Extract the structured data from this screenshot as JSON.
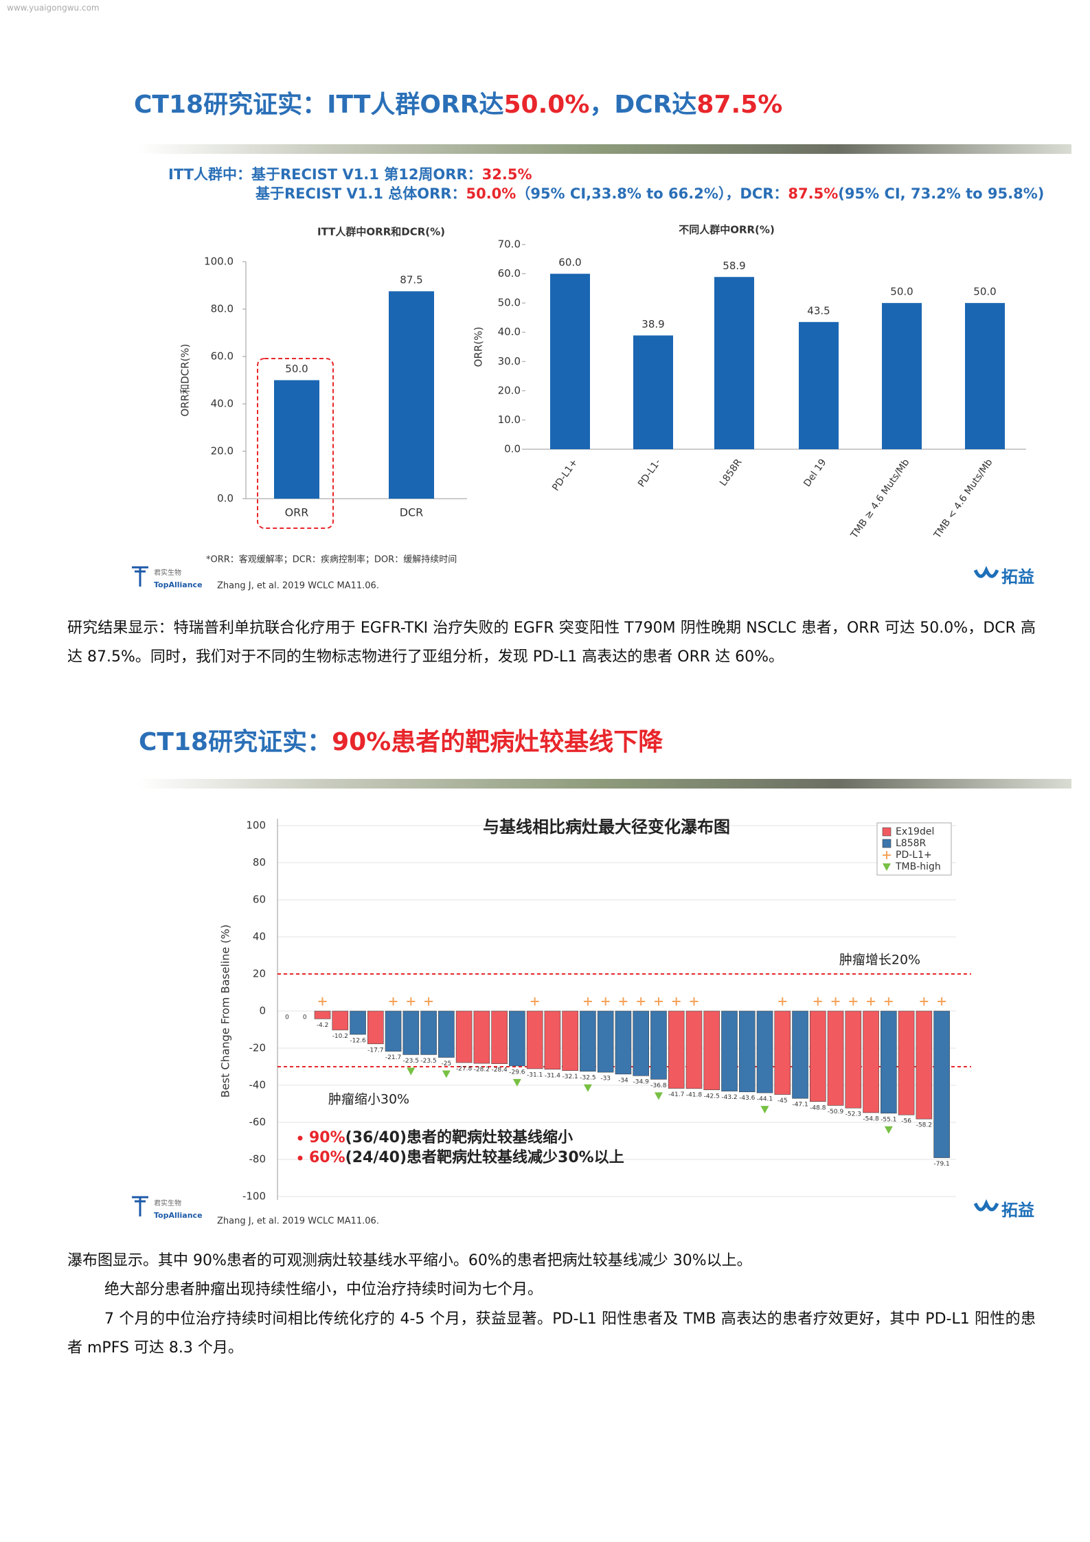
{
  "watermark": "www.yuaigongwu.com",
  "section1": {
    "title": [
      "CT18研究证实：ITT人群ORR达",
      "50.0%",
      "，DCR达",
      "87.5%"
    ],
    "subtitle": [
      [
        "ITT人群中：基于RECIST  V1.1 第12周ORR：",
        "32.5%"
      ],
      [
        "基于RECIST  V1.1 总体ORR：",
        "50.0%",
        "（95% CI,33.8% to 66.2%），DCR：",
        "87.5%",
        "(95% CI, 73.2% to 95.8%)"
      ]
    ],
    "footnote": "*ORR：客观缓解率；DCR：疾病控制率；DOR：缓解持续时间",
    "logo": [
      "君实生物",
      "TopAlliance"
    ],
    "reference": "Zhang J, et al. 2019 WCLC MA11.06.",
    "partner": "拓益"
  },
  "paragraph1": "研究结果显示：特瑞普利单抗联合化疗用于 EGFR-TKI 治疗失败的 EGFR 突变阳性 T790M 阴性晚期 NSCLC 患者，ORR 可达 50.0%，DCR 高达 87.5%。同时，我们对于不同的生物标志物进行了亚组分析，发现 PD-L1 高表达的患者 ORR 达 60%。",
  "section2": {
    "title": [
      "CT18研究证实：",
      "90%患者的靶病灶较基线下降"
    ],
    "logo": [
      "君实生物",
      "TopAlliance"
    ],
    "reference": "Zhang J, et al. 2019 WCLC MA11.06.",
    "partner": "拓益"
  },
  "paragraphs": [
    "瀑布图显示。其中 90%患者的可观测病灶较基线水平缩小。60%的患者把病灶较基线减少 30%以上。",
    "绝大部分患者肿瘤出现持续性缩小，中位治疗持续时间为七个月。",
    "7 个月的中位治疗持续时间相比传统化疗的 4-5 个月，获益显著。PD-L1 阳性患者及 TMB 高表达的患者疗效更好，其中 PD-L1 阳性的患者 mPFS 可达 8.3 个月。"
  ],
  "chart_data": [
    {
      "type": "bar",
      "title": "ITT人群中ORR和DCR(%)",
      "y_label": "ORR和DCR(%)",
      "categories": [
        "ORR",
        "DCR"
      ],
      "values": [
        50.0,
        87.5
      ],
      "value_labels": [
        "50.0",
        "87.5"
      ],
      "color": "#1a66b3",
      "ylim": [
        0,
        100
      ],
      "yticks": [
        {
          "value": 0,
          "label": "0.0"
        },
        {
          "value": 20,
          "label": "20.0"
        },
        {
          "value": 40,
          "label": "40.0"
        },
        {
          "value": 60,
          "label": "60.0"
        },
        {
          "value": 80,
          "label": "80.0"
        },
        {
          "value": 100,
          "label": "100.0"
        }
      ]
    },
    {
      "type": "bar",
      "title": "不同人群中ORR(%)",
      "y_label": "ORR(%)",
      "categories": [
        "PD-L1+",
        "PD-L1-",
        "L858R",
        "Del 19",
        "TMB ≥ 4.6 Muts/Mb",
        "TMB < 4.6 Muts/Mb"
      ],
      "values": [
        60.0,
        38.9,
        58.9,
        43.5,
        50.0,
        50.0
      ],
      "value_labels": [
        "60.0",
        "38.9",
        "58.9",
        "43.5",
        "50.0",
        "50.0"
      ],
      "color": "#1a66b3",
      "ylim": [
        0,
        70
      ],
      "yticks": [
        {
          "value": 0,
          "label": "0.0"
        },
        {
          "value": 10,
          "label": "10.0"
        },
        {
          "value": 20,
          "label": "20.0"
        },
        {
          "value": 30,
          "label": "30.0"
        },
        {
          "value": 40,
          "label": "40.0"
        },
        {
          "value": 50,
          "label": "50.0"
        },
        {
          "value": 60,
          "label": "60.0"
        },
        {
          "value": 70,
          "label": "70.0"
        }
      ]
    },
    {
      "type": "waterfall",
      "title": "与基线相比病灶最大径变化瀑布图",
      "y_label": "Best Change From Baseline (%)",
      "values": [
        0,
        0,
        -4.2,
        -10.2,
        -12.6,
        -17.7,
        -21.7,
        -23.5,
        -23.5,
        -25,
        -27.8,
        -28.2,
        -28.4,
        -29.6,
        -31.1,
        -31.4,
        -32.1,
        -32.5,
        -33,
        -34,
        -34.9,
        -36.8,
        -41.7,
        -41.8,
        -42.5,
        -43.2,
        -43.6,
        -44.1,
        -45,
        -47.1,
        -48.8,
        -50.9,
        -52.3,
        -54.8,
        -55.1,
        -56,
        -58.2,
        -79.1
      ],
      "bar_colors": [
        "#f15a5f",
        "#f15a5f",
        "#f15a5f",
        "#f15a5f",
        "#3b76ad",
        "#f15a5f",
        "#3b76ad",
        "#3b76ad",
        "#3b76ad",
        "#3b76ad",
        "#f15a5f",
        "#f15a5f",
        "#f15a5f",
        "#3b76ad",
        "#f15a5f",
        "#f15a5f",
        "#f15a5f",
        "#3b76ad",
        "#3b76ad",
        "#3b76ad",
        "#3b76ad",
        "#3b76ad",
        "#f15a5f",
        "#f15a5f",
        "#f15a5f",
        "#3b76ad",
        "#3b76ad",
        "#3b76ad",
        "#f15a5f",
        "#3b76ad",
        "#f15a5f",
        "#f15a5f",
        "#f15a5f",
        "#f15a5f",
        "#3b76ad",
        "#f15a5f",
        "#f15a5f",
        "#3b76ad"
      ],
      "pdl1_positive": [
        2,
        6,
        7,
        8,
        14,
        17,
        18,
        19,
        20,
        21,
        22,
        23,
        28,
        30,
        31,
        32,
        33,
        34,
        36,
        37
      ],
      "tmb_high": [
        7,
        9,
        13,
        17,
        21,
        27,
        34
      ],
      "legend": [
        {
          "name": "Ex19del",
          "color": "#f15a5f"
        },
        {
          "name": "L858R",
          "color": "#3b76ad"
        },
        {
          "name": "PD-L1+",
          "color": "#f5a259"
        },
        {
          "name": "TMB-high",
          "color": "#77c043"
        }
      ],
      "reference_lines": [
        {
          "value": 20,
          "label": "肿瘤增长20%"
        },
        {
          "value": -30,
          "label": "肿瘤缩小30%"
        }
      ],
      "notes": [
        [
          "90%",
          "(36/40)患者的靶病灶较基线缩小"
        ],
        [
          "60%",
          "(24/40)患者靶病灶较基线减少30%以上"
        ]
      ],
      "ylim": [
        -100,
        105
      ],
      "yticks": [
        -100,
        -80,
        -60,
        -40,
        -20,
        0,
        20,
        40,
        60,
        80,
        100
      ],
      "grid": true
    }
  ]
}
